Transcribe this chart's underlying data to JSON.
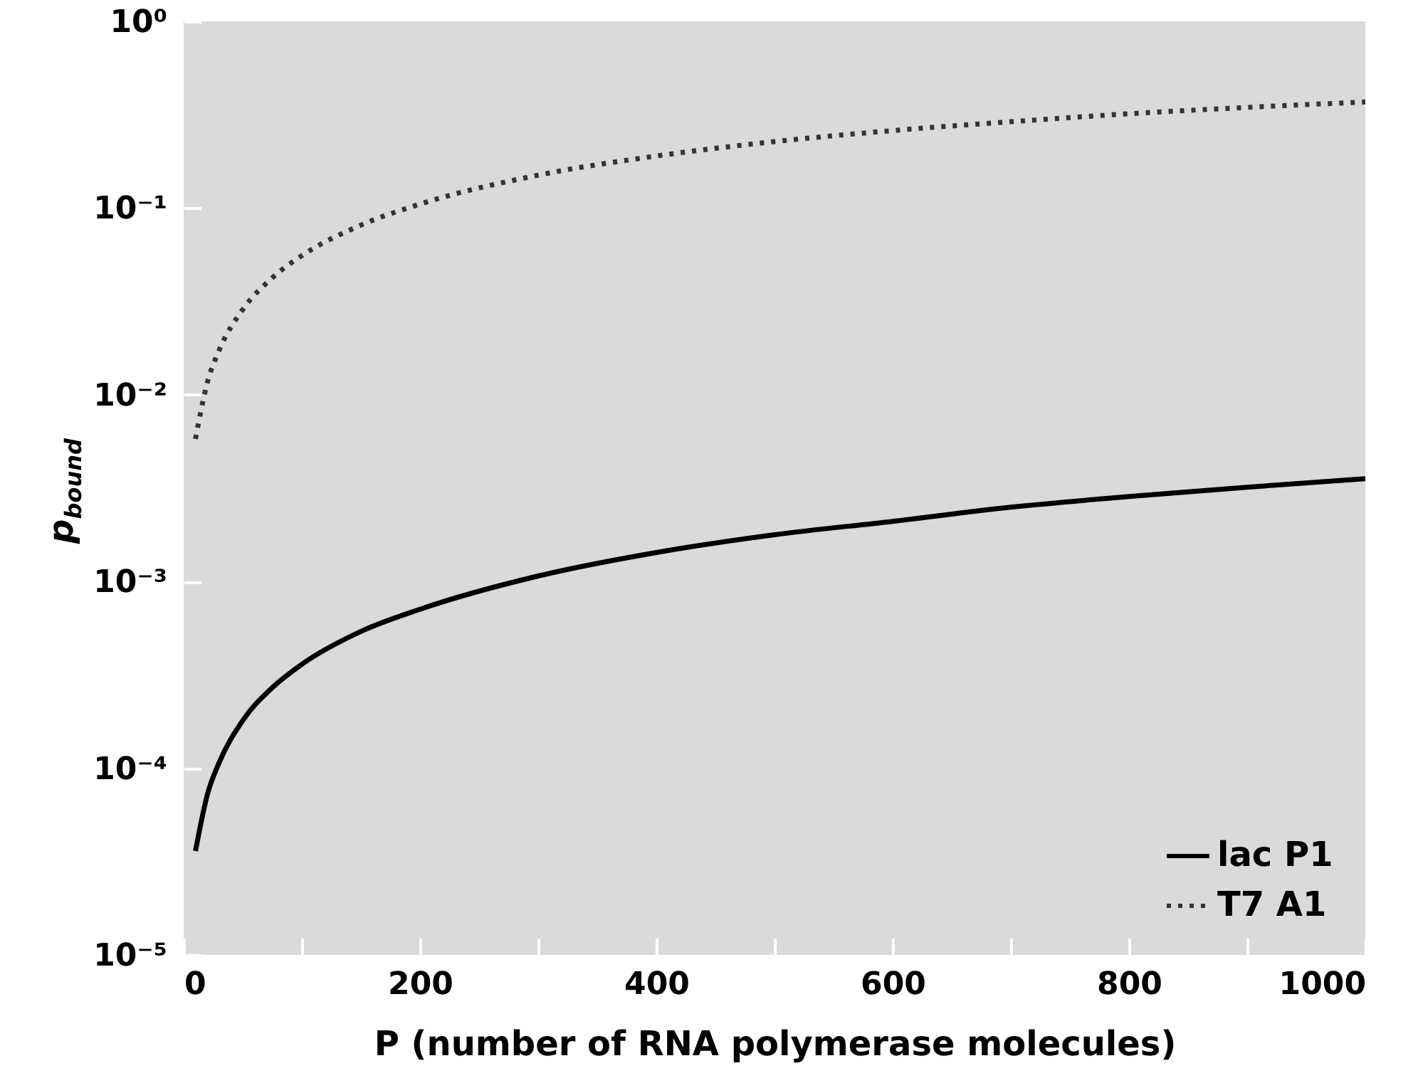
{
  "chart_data": {
    "type": "line",
    "xlabel": "P (number of RNA polymerase molecules)",
    "ylabel": "p$_{bound}$",
    "x": [
      10,
      20,
      30,
      50,
      75,
      100,
      150,
      200,
      300,
      400,
      500,
      600,
      700,
      800,
      900,
      1000
    ],
    "series": [
      {
        "name": "lac P1",
        "color": "#000000",
        "line_style": "solid",
        "values": [
          3.6e-05,
          7.2e-05,
          0.000107,
          0.00018,
          0.00027,
          0.00036,
          0.00054,
          0.00071,
          0.00107,
          0.00143,
          0.00178,
          0.0021,
          0.0025,
          0.00285,
          0.0032,
          0.00355
        ]
      },
      {
        "name": "T7 A1",
        "color": "#333333",
        "line_style": "dotted",
        "values": [
          0.0058,
          0.0116,
          0.0173,
          0.0286,
          0.0423,
          0.0556,
          0.081,
          0.105,
          0.15,
          0.19,
          0.227,
          0.26,
          0.29,
          0.32,
          0.346,
          0.37
        ]
      }
    ],
    "log": "y",
    "xlim": [
      0,
      1000
    ],
    "xticks": [
      0,
      {
        "value": 100,
        "label": null
      },
      200,
      {
        "value": 300,
        "label": null
      },
      400,
      {
        "value": 500,
        "label": null
      },
      600,
      {
        "value": 700,
        "label": null
      },
      800,
      {
        "value": 900,
        "label": null
      },
      1000
    ],
    "ylim": [
      1e-05,
      1
    ],
    "yticks": [
      {
        "value": 1e-05,
        "label": "10⁻⁵"
      },
      {
        "value": 0.0001,
        "label": "10⁻⁴"
      },
      {
        "value": 0.001,
        "label": "10⁻³"
      },
      {
        "value": 0.01,
        "label": "10⁻²"
      },
      {
        "value": 0.1,
        "label": "10⁻¹"
      },
      {
        "value": 1,
        "label": "10⁰"
      }
    ],
    "legend": "bottom right",
    "grid": false
  }
}
